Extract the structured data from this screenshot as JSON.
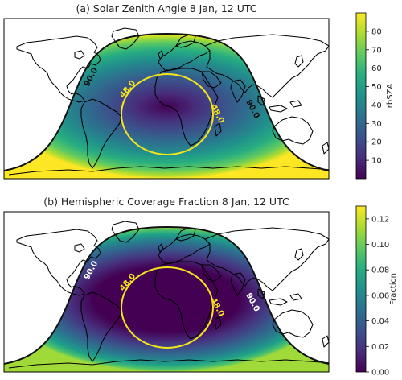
{
  "chart_data": [
    {
      "type": "heatmap",
      "title": "(a) Solar Zenith Angle  8 Jan, 12 UTC",
      "colorbar_label": "rbSZA",
      "colorbar_ticks": [
        "10",
        "20",
        "30",
        "40",
        "50",
        "60",
        "70",
        "80"
      ],
      "colorbar_range": [
        0,
        90
      ],
      "colormap": "viridis",
      "subsolar_point": {
        "lon": 0,
        "lat": -22.3
      },
      "contours": [
        {
          "value": 48.0,
          "label": "48.0",
          "color": "#f5e51b"
        },
        {
          "value": 90.0,
          "label": "90.0",
          "color": "#111111"
        }
      ]
    },
    {
      "type": "heatmap",
      "title": "(b) Hemispheric Coverage Fraction  8 Jan, 12 UTC",
      "colorbar_label": "Fraction",
      "colorbar_ticks": [
        "0.00",
        "0.02",
        "0.04",
        "0.06",
        "0.08",
        "0.10",
        "0.12"
      ],
      "colorbar_range": [
        0,
        0.13
      ],
      "colormap": "viridis",
      "subsolar_point": {
        "lon": 0,
        "lat": -22.3
      },
      "contours": [
        {
          "value": 48.0,
          "label": "48.0",
          "color": "#f5e51b"
        },
        {
          "value": 90.0,
          "label": "90.0",
          "color": "#111111"
        }
      ]
    }
  ]
}
